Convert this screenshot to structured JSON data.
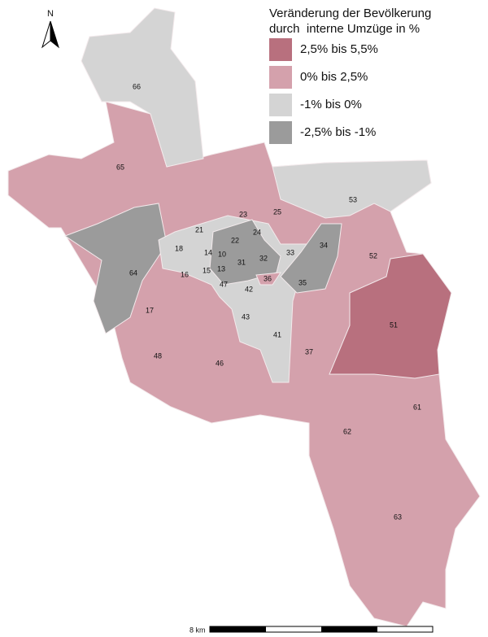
{
  "legend": {
    "title": [
      "Veränderung der Bevölkerung",
      "durch  interne Umzüge in %"
    ],
    "items": [
      {
        "label": "2,5% bis 5,5%",
        "color": "#b8707e"
      },
      {
        "label": "0% bis 2,5%",
        "color": "#d4a1ac"
      },
      {
        "label": "-1% bis 0%",
        "color": "#d4d4d4"
      },
      {
        "label": "-2,5% bis -1%",
        "color": "#9b9b9b"
      }
    ]
  },
  "districts": [
    "66",
    "65",
    "53",
    "23",
    "25",
    "21",
    "22",
    "24",
    "34",
    "18",
    "14",
    "10",
    "33",
    "52",
    "32",
    "31",
    "15",
    "13",
    "64",
    "16",
    "36",
    "47",
    "35",
    "42",
    "17",
    "51",
    "43",
    "41",
    "37",
    "48",
    "46",
    "61",
    "62",
    "63"
  ],
  "north": "N",
  "scale": "8 km"
}
